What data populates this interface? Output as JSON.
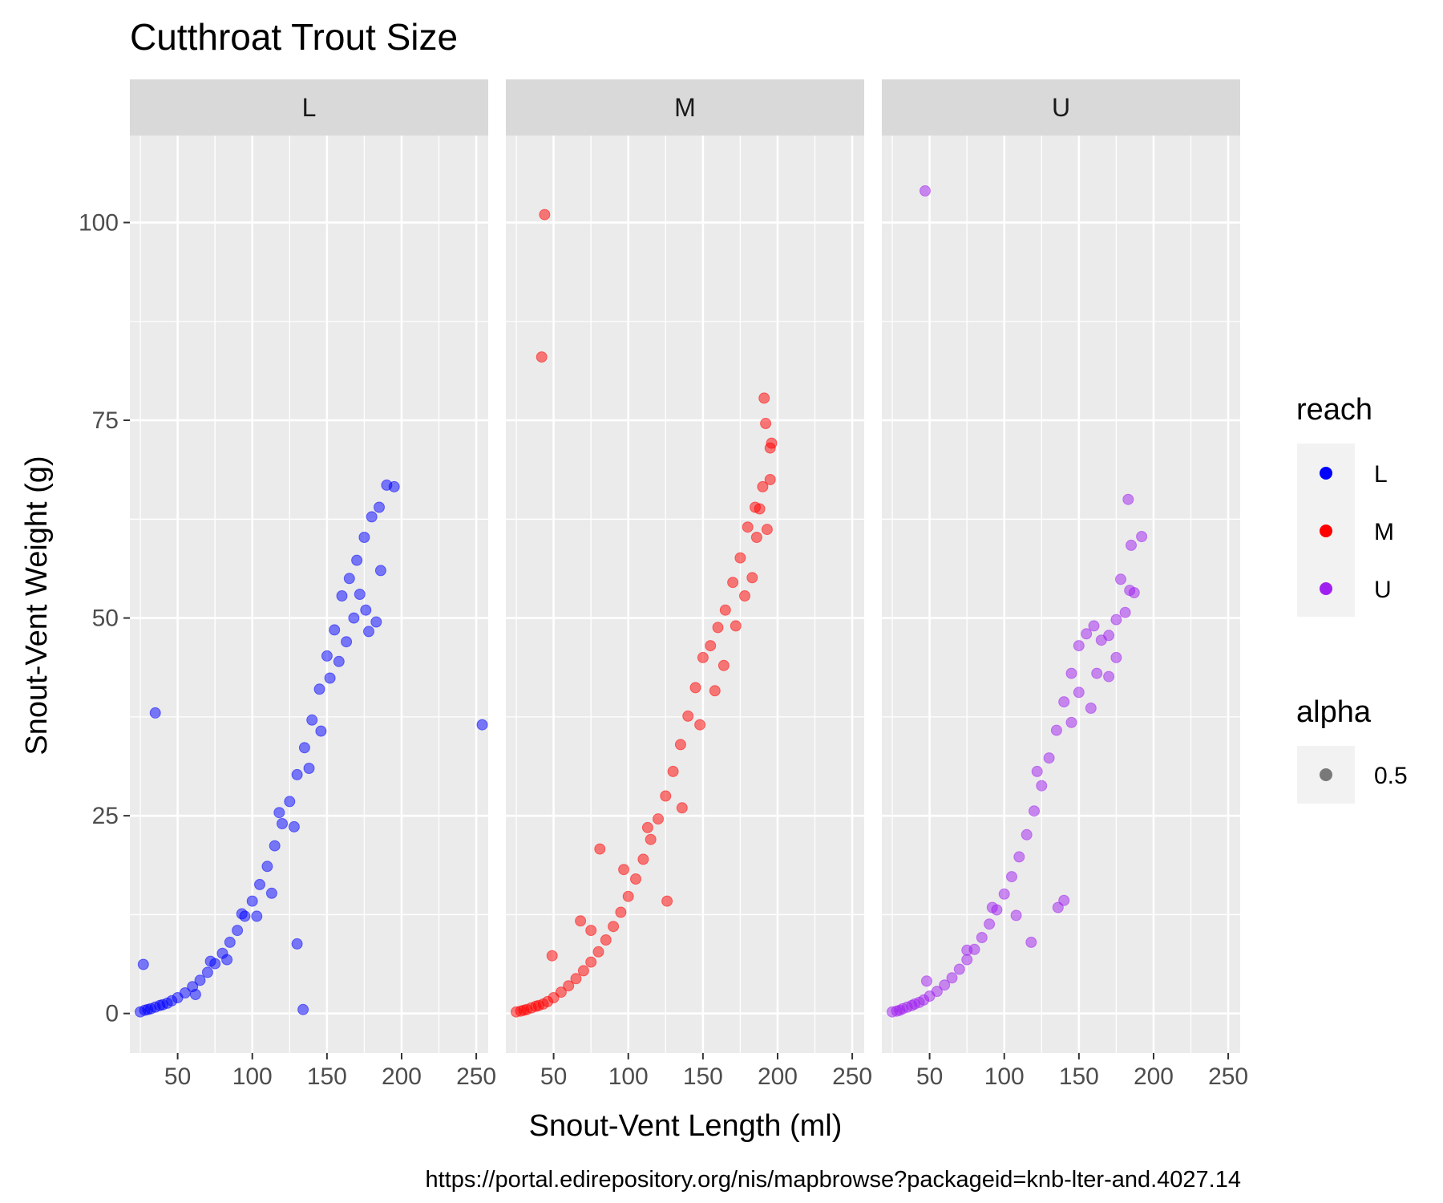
{
  "chart_data": {
    "type": "scatter",
    "title": "Cutthroat Trout Size",
    "xlabel": "Snout-Vent Length (ml)",
    "ylabel": "Snout-Vent Weight (g)",
    "caption": "https://portal.edirepository.org/nis/mapbrowse?packageid=knb-lter-and.4027.14",
    "xlim": [
      18,
      258
    ],
    "ylim": [
      -5,
      111
    ],
    "x_ticks": [
      50,
      100,
      150,
      200,
      250
    ],
    "y_ticks": [
      0,
      25,
      50,
      75,
      100
    ],
    "x_tick_labels": [
      "50",
      "100",
      "150",
      "200",
      "250"
    ],
    "y_tick_labels": [
      "0",
      "25",
      "50",
      "75",
      "100"
    ],
    "grid": true,
    "legend_position": "right",
    "legend": {
      "reach": {
        "title": "reach",
        "entries": [
          "L",
          "M",
          "U"
        ]
      },
      "alpha": {
        "title": "alpha",
        "entries": [
          "0.5"
        ]
      }
    },
    "colors": {
      "L": "#0000ff",
      "M": "#ff0000",
      "U": "#a020f0",
      "panel_bg": "#ebebeb",
      "strip_bg": "#d9d9d9"
    },
    "facets": [
      {
        "label": "L",
        "points": [
          [
            25,
            0.2
          ],
          [
            28,
            0.4
          ],
          [
            30,
            0.5
          ],
          [
            32,
            0.6
          ],
          [
            35,
            0.8
          ],
          [
            38,
            1.0
          ],
          [
            40,
            1.1
          ],
          [
            43,
            1.3
          ],
          [
            46,
            1.6
          ],
          [
            50,
            2.0
          ],
          [
            55,
            2.6
          ],
          [
            60,
            3.4
          ],
          [
            65,
            4.2
          ],
          [
            70,
            5.2
          ],
          [
            75,
            6.3
          ],
          [
            80,
            7.6
          ],
          [
            85,
            9.0
          ],
          [
            90,
            10.5
          ],
          [
            95,
            12.3
          ],
          [
            100,
            14.2
          ],
          [
            105,
            16.3
          ],
          [
            110,
            18.6
          ],
          [
            115,
            21.2
          ],
          [
            120,
            24.0
          ],
          [
            125,
            26.8
          ],
          [
            130,
            30.2
          ],
          [
            135,
            33.6
          ],
          [
            140,
            37.1
          ],
          [
            145,
            41.0
          ],
          [
            150,
            45.2
          ],
          [
            155,
            48.5
          ],
          [
            160,
            52.8
          ],
          [
            165,
            55.0
          ],
          [
            170,
            57.3
          ],
          [
            175,
            60.2
          ],
          [
            180,
            62.8
          ],
          [
            185,
            64.0
          ],
          [
            190,
            66.8
          ],
          [
            195,
            66.6
          ],
          [
            62,
            2.4
          ],
          [
            72,
            6.6
          ],
          [
            83,
            6.8
          ],
          [
            93,
            12.6
          ],
          [
            103,
            12.3
          ],
          [
            113,
            15.2
          ],
          [
            118,
            25.4
          ],
          [
            128,
            23.6
          ],
          [
            138,
            31.0
          ],
          [
            146,
            35.7
          ],
          [
            152,
            42.4
          ],
          [
            158,
            44.5
          ],
          [
            163,
            47.0
          ],
          [
            168,
            50.0
          ],
          [
            172,
            53.0
          ],
          [
            178,
            48.3
          ],
          [
            183,
            49.5
          ],
          [
            186,
            56.0
          ],
          [
            176,
            51.0
          ],
          [
            27,
            6.2
          ],
          [
            35,
            38.0
          ],
          [
            130,
            8.8
          ],
          [
            134,
            0.5
          ],
          [
            254,
            36.5
          ]
        ]
      },
      {
        "label": "M",
        "points": [
          [
            25,
            0.2
          ],
          [
            28,
            0.3
          ],
          [
            30,
            0.4
          ],
          [
            32,
            0.5
          ],
          [
            35,
            0.7
          ],
          [
            38,
            0.9
          ],
          [
            40,
            1.0
          ],
          [
            43,
            1.2
          ],
          [
            46,
            1.5
          ],
          [
            50,
            2.0
          ],
          [
            55,
            2.7
          ],
          [
            60,
            3.5
          ],
          [
            65,
            4.4
          ],
          [
            70,
            5.4
          ],
          [
            75,
            6.5
          ],
          [
            80,
            7.8
          ],
          [
            85,
            9.3
          ],
          [
            90,
            11.0
          ],
          [
            95,
            12.8
          ],
          [
            100,
            14.8
          ],
          [
            105,
            17.0
          ],
          [
            110,
            19.5
          ],
          [
            115,
            22.0
          ],
          [
            120,
            24.6
          ],
          [
            125,
            27.5
          ],
          [
            130,
            30.6
          ],
          [
            135,
            34.0
          ],
          [
            140,
            37.6
          ],
          [
            145,
            41.2
          ],
          [
            150,
            45.0
          ],
          [
            155,
            46.5
          ],
          [
            160,
            48.8
          ],
          [
            165,
            51.0
          ],
          [
            170,
            54.5
          ],
          [
            175,
            57.6
          ],
          [
            180,
            61.5
          ],
          [
            185,
            64.0
          ],
          [
            190,
            66.6
          ],
          [
            195,
            67.5
          ],
          [
            68,
            11.7
          ],
          [
            75,
            10.5
          ],
          [
            81,
            20.8
          ],
          [
            97,
            18.2
          ],
          [
            113,
            23.5
          ],
          [
            126,
            14.2
          ],
          [
            136,
            26.0
          ],
          [
            148,
            36.5
          ],
          [
            158,
            40.8
          ],
          [
            164,
            44.0
          ],
          [
            172,
            49.0
          ],
          [
            178,
            52.8
          ],
          [
            183,
            55.1
          ],
          [
            186,
            60.2
          ],
          [
            188,
            63.8
          ],
          [
            192,
            74.6
          ],
          [
            191,
            77.8
          ],
          [
            196,
            72.1
          ],
          [
            195,
            71.5
          ],
          [
            193,
            61.2
          ],
          [
            42,
            83.0
          ],
          [
            44,
            101.0
          ],
          [
            49,
            7.3
          ]
        ]
      },
      {
        "label": "U",
        "points": [
          [
            25,
            0.2
          ],
          [
            28,
            0.3
          ],
          [
            30,
            0.4
          ],
          [
            32,
            0.6
          ],
          [
            35,
            0.8
          ],
          [
            38,
            1.0
          ],
          [
            40,
            1.2
          ],
          [
            43,
            1.4
          ],
          [
            46,
            1.7
          ],
          [
            50,
            2.2
          ],
          [
            55,
            2.8
          ],
          [
            60,
            3.6
          ],
          [
            65,
            4.5
          ],
          [
            70,
            5.6
          ],
          [
            75,
            6.8
          ],
          [
            80,
            8.1
          ],
          [
            85,
            9.6
          ],
          [
            90,
            11.3
          ],
          [
            95,
            13.1
          ],
          [
            100,
            15.1
          ],
          [
            105,
            17.3
          ],
          [
            110,
            19.8
          ],
          [
            115,
            22.6
          ],
          [
            120,
            25.6
          ],
          [
            125,
            28.8
          ],
          [
            130,
            32.3
          ],
          [
            135,
            35.8
          ],
          [
            140,
            39.4
          ],
          [
            145,
            43.0
          ],
          [
            150,
            46.5
          ],
          [
            155,
            48.0
          ],
          [
            160,
            49.0
          ],
          [
            165,
            47.2
          ],
          [
            170,
            47.8
          ],
          [
            175,
            49.8
          ],
          [
            178,
            54.9
          ],
          [
            181,
            50.7
          ],
          [
            184,
            53.5
          ],
          [
            75,
            8.0
          ],
          [
            92,
            13.4
          ],
          [
            108,
            12.4
          ],
          [
            118,
            9.0
          ],
          [
            122,
            30.6
          ],
          [
            136,
            13.4
          ],
          [
            140,
            14.3
          ],
          [
            145,
            36.8
          ],
          [
            150,
            40.6
          ],
          [
            158,
            38.6
          ],
          [
            162,
            43.0
          ],
          [
            170,
            42.6
          ],
          [
            175,
            45.0
          ],
          [
            183,
            65.0
          ],
          [
            185,
            59.2
          ],
          [
            187,
            53.2
          ],
          [
            192,
            60.3
          ],
          [
            47,
            104.0
          ],
          [
            48,
            4.1
          ]
        ]
      }
    ]
  }
}
